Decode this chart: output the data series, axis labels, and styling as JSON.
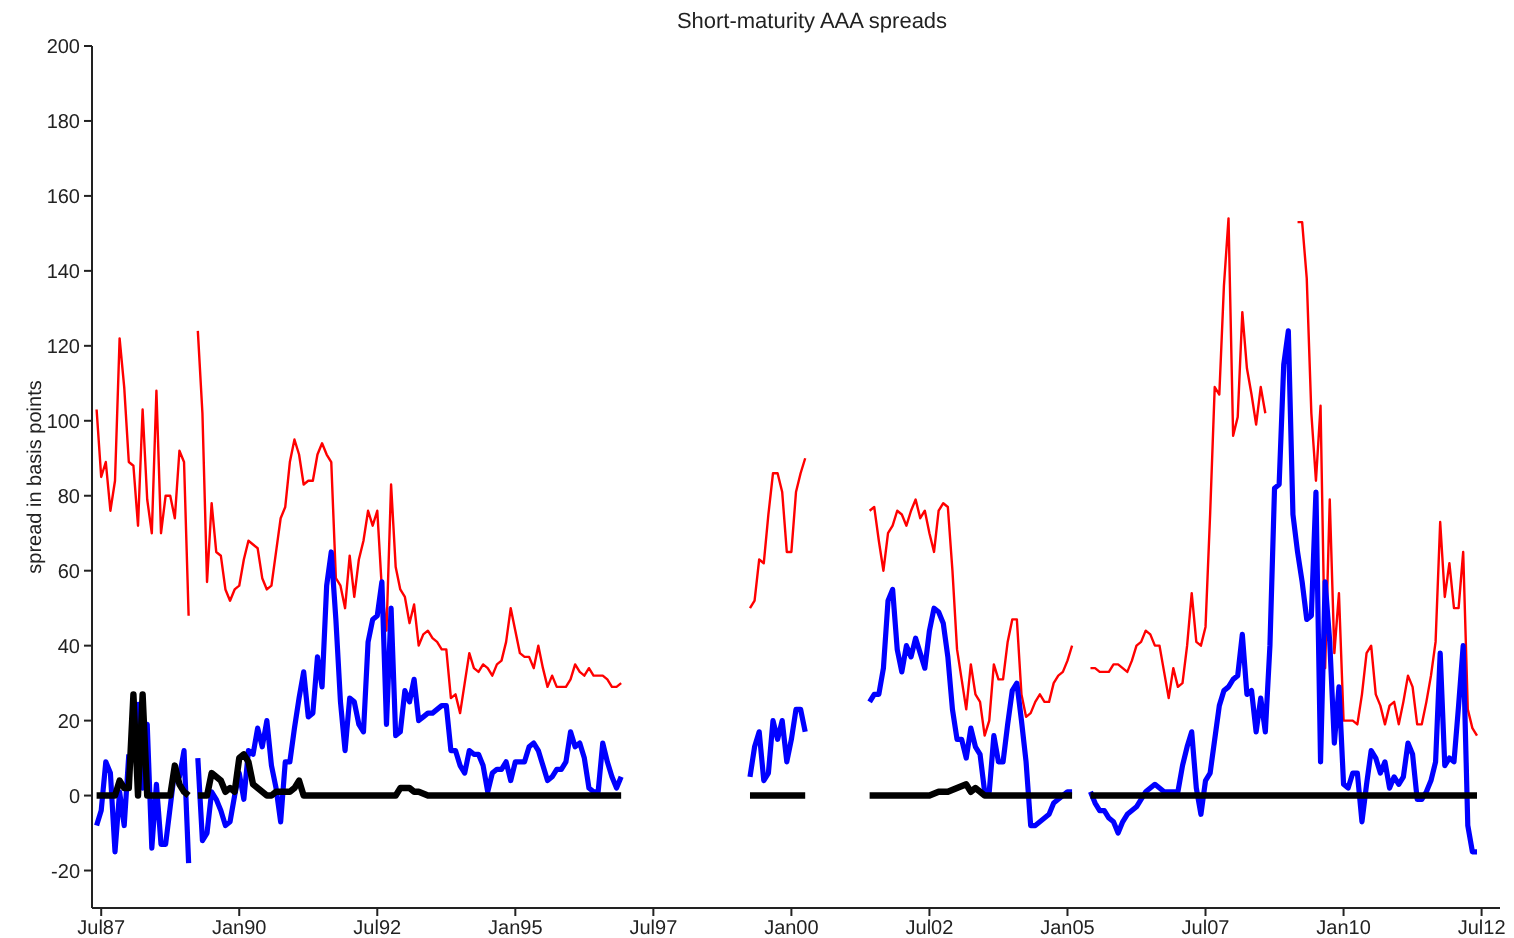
{
  "chart_data": {
    "type": "line",
    "title": "Short-maturity AAA spreads",
    "ylabel": "spread in basis points",
    "xlim": [
      "1987-05",
      "2012-11"
    ],
    "ylim": [
      -30,
      200
    ],
    "xticks": [
      {
        "value": "1987-07",
        "label": "Jul87"
      },
      {
        "value": "1990-01",
        "label": "Jan90"
      },
      {
        "value": "1992-07",
        "label": "Jul92"
      },
      {
        "value": "1995-01",
        "label": "Jan95"
      },
      {
        "value": "1997-07",
        "label": "Jul97"
      },
      {
        "value": "2000-01",
        "label": "Jan00"
      },
      {
        "value": "2002-07",
        "label": "Jul02"
      },
      {
        "value": "2005-01",
        "label": "Jan05"
      },
      {
        "value": "2007-07",
        "label": "Jul07"
      },
      {
        "value": "2010-01",
        "label": "Jan10"
      },
      {
        "value": "2012-07",
        "label": "Jul12"
      }
    ],
    "yticks": [
      -20,
      0,
      20,
      40,
      60,
      80,
      100,
      120,
      140,
      160,
      180,
      200
    ],
    "grid": false,
    "legend": false,
    "x": [
      "1987-06",
      "1987-07",
      "1987-08",
      "1987-09",
      "1987-10",
      "1987-11",
      "1987-12",
      "1988-01",
      "1988-02",
      "1988-03",
      "1988-04",
      "1988-05",
      "1988-06",
      "1988-07",
      "1988-08",
      "1988-09",
      "1988-10",
      "1988-11",
      "1988-12",
      "1989-01",
      "1989-02",
      "1989-03",
      "1989-04",
      "1989-05",
      "1989-06",
      "1989-07",
      "1989-08",
      "1989-09",
      "1989-10",
      "1989-11",
      "1989-12",
      "1990-01",
      "1990-02",
      "1990-03",
      "1990-04",
      "1990-05",
      "1990-06",
      "1990-07",
      "1990-08",
      "1990-09",
      "1990-10",
      "1990-11",
      "1990-12",
      "1991-01",
      "1991-02",
      "1991-03",
      "1991-04",
      "1991-05",
      "1991-06",
      "1991-07",
      "1991-08",
      "1991-09",
      "1991-10",
      "1991-11",
      "1991-12",
      "1992-01",
      "1992-02",
      "1992-03",
      "1992-04",
      "1992-05",
      "1992-06",
      "1992-07",
      "1992-08",
      "1992-09",
      "1992-10",
      "1992-11",
      "1992-12",
      "1993-01",
      "1993-02",
      "1993-03",
      "1993-04",
      "1993-05",
      "1993-06",
      "1993-07",
      "1993-08",
      "1993-09",
      "1993-10",
      "1993-11",
      "1993-12",
      "1994-01",
      "1994-02",
      "1994-03",
      "1994-04",
      "1994-05",
      "1994-06",
      "1994-07",
      "1994-08",
      "1994-09",
      "1994-10",
      "1994-11",
      "1994-12",
      "1995-01",
      "1995-02",
      "1995-03",
      "1995-04",
      "1995-05",
      "1995-06",
      "1995-07",
      "1995-08",
      "1995-09",
      "1995-10",
      "1995-11",
      "1995-12",
      "1996-01",
      "1996-02",
      "1996-03",
      "1996-04",
      "1996-05",
      "1996-06",
      "1996-07",
      "1996-08",
      "1996-09",
      "1996-10",
      "1996-11",
      "1996-12",
      "1997-01",
      "1999-04",
      "1999-05",
      "1999-06",
      "1999-07",
      "1999-08",
      "1999-09",
      "1999-10",
      "1999-11",
      "1999-12",
      "2000-01",
      "2000-02",
      "2000-03",
      "2000-04",
      "2000-05",
      "2001-06",
      "2001-07",
      "2001-08",
      "2001-09",
      "2001-10",
      "2001-11",
      "2001-12",
      "2002-01",
      "2002-02",
      "2002-03",
      "2002-04",
      "2002-05",
      "2002-06",
      "2002-07",
      "2002-08",
      "2002-09",
      "2002-10",
      "2002-11",
      "2002-12",
      "2003-01",
      "2003-02",
      "2003-03",
      "2003-04",
      "2003-05",
      "2003-06",
      "2003-07",
      "2003-08",
      "2003-09",
      "2003-10",
      "2003-11",
      "2003-12",
      "2004-01",
      "2004-02",
      "2004-03",
      "2004-04",
      "2004-05",
      "2004-06",
      "2004-07",
      "2004-08",
      "2004-09",
      "2004-10",
      "2004-11",
      "2004-12",
      "2005-01",
      "2005-02",
      "2005-03",
      "2005-06",
      "2005-07",
      "2005-08",
      "2005-09",
      "2005-10",
      "2005-11",
      "2005-12",
      "2006-01",
      "2006-02",
      "2006-03",
      "2006-04",
      "2006-05",
      "2006-06",
      "2006-07",
      "2006-08",
      "2006-09",
      "2006-10",
      "2006-11",
      "2006-12",
      "2007-01",
      "2007-02",
      "2007-03",
      "2007-04",
      "2007-05",
      "2007-06",
      "2007-07",
      "2007-08",
      "2007-09",
      "2007-10",
      "2007-11",
      "2007-12",
      "2008-01",
      "2008-02",
      "2008-03",
      "2008-04",
      "2008-05",
      "2008-06",
      "2008-07",
      "2008-08",
      "2008-09",
      "2008-10",
      "2008-11",
      "2008-12",
      "2009-01",
      "2009-02",
      "2009-03",
      "2009-04",
      "2009-05",
      "2009-06",
      "2009-07",
      "2009-08",
      "2009-09",
      "2009-10",
      "2009-11",
      "2009-12",
      "2010-01",
      "2010-02",
      "2010-03",
      "2010-04",
      "2010-05",
      "2010-06",
      "2010-07",
      "2010-08",
      "2010-09",
      "2010-10",
      "2010-11",
      "2010-12",
      "2011-01",
      "2011-02",
      "2011-03",
      "2011-04",
      "2011-05",
      "2011-06",
      "2011-07",
      "2011-08",
      "2011-09",
      "2011-10",
      "2011-11",
      "2011-12",
      "2012-01",
      "2012-02",
      "2012-03",
      "2012-04",
      "2012-05",
      "2012-06"
    ],
    "series": [
      {
        "color": "#ff0000",
        "values": [
          103,
          85,
          89,
          76,
          84,
          122,
          109,
          89,
          88,
          72,
          103,
          79,
          70,
          108,
          70,
          80,
          80,
          74,
          92,
          89,
          48,
          null,
          124,
          102,
          57,
          78,
          65,
          64,
          55,
          52,
          55,
          56,
          63,
          68,
          67,
          66,
          58,
          55,
          56,
          65,
          74,
          77,
          89,
          95,
          91,
          83,
          84,
          84,
          91,
          94,
          91,
          89,
          58,
          56,
          50,
          64,
          53,
          63,
          68,
          76,
          72,
          76,
          55,
          44,
          83,
          61,
          55,
          53,
          46,
          51,
          40,
          43,
          44,
          42,
          41,
          39,
          39,
          26,
          27,
          22,
          30,
          38,
          34,
          33,
          35,
          34,
          32,
          35,
          36,
          41,
          50,
          44,
          38,
          37,
          37,
          34,
          40,
          34,
          29,
          32,
          29,
          29,
          29,
          31,
          35,
          33,
          32,
          34,
          32,
          32,
          32,
          31,
          29,
          29,
          30,
          null,
          50,
          52,
          63,
          62,
          75,
          86,
          86,
          81,
          65,
          65,
          81,
          86,
          90,
          null,
          76,
          77,
          68,
          60,
          70,
          72,
          76,
          75,
          72,
          76,
          79,
          74,
          76,
          70,
          65,
          76,
          78,
          77,
          60,
          39,
          31,
          23,
          35,
          27,
          25,
          16,
          20,
          35,
          31,
          31,
          41,
          47,
          47,
          27,
          21,
          22,
          25,
          27,
          25,
          25,
          30,
          32,
          33,
          36,
          40,
          null,
          34,
          34,
          33,
          33,
          33,
          35,
          35,
          34,
          33,
          36,
          40,
          41,
          44,
          43,
          40,
          40,
          33,
          26,
          34,
          29,
          30,
          40,
          54,
          41,
          40,
          45,
          75,
          109,
          107,
          136,
          154,
          96,
          101,
          129,
          114,
          107,
          99,
          109,
          102,
          null,
          null,
          null,
          null,
          null,
          null,
          153,
          153,
          138,
          102,
          84,
          104,
          34,
          79,
          38,
          54,
          20,
          20,
          20,
          19,
          27,
          38,
          40,
          27,
          24,
          19,
          24,
          25,
          19,
          25,
          32,
          29,
          19,
          19,
          25,
          32,
          41,
          73,
          53,
          62,
          50,
          50,
          65,
          23,
          18,
          16
        ]
      },
      {
        "color": "#0000ff",
        "values": [
          -8,
          -4,
          9,
          6,
          -15,
          1,
          -8,
          11,
          null,
          25,
          2,
          19,
          -14,
          3,
          -13,
          -13,
          -3,
          7,
          5,
          12,
          -18,
          null,
          10,
          -12,
          -10,
          1,
          -1,
          -4,
          -8,
          -7,
          0,
          6,
          -1,
          12,
          11,
          18,
          13,
          20,
          8,
          2,
          -7,
          9,
          9,
          18,
          26,
          33,
          21,
          22,
          37,
          29,
          56,
          65,
          47,
          25,
          12,
          26,
          25,
          19,
          17,
          41,
          47,
          48,
          57,
          19,
          50,
          16,
          17,
          28,
          25,
          31,
          20,
          21,
          22,
          22,
          23,
          24,
          24,
          12,
          12,
          8,
          6,
          12,
          11,
          11,
          8,
          1,
          6,
          7,
          7,
          9,
          4,
          9,
          9,
          9,
          13,
          14,
          12,
          8,
          4,
          5,
          7,
          7,
          9,
          17,
          13,
          14,
          10,
          2,
          1,
          1,
          14,
          9,
          5,
          2,
          5,
          null,
          5,
          13,
          17,
          4,
          6,
          20,
          15,
          20,
          9,
          15,
          23,
          23,
          17,
          null,
          25,
          27,
          27,
          34,
          52,
          55,
          39,
          33,
          40,
          37,
          42,
          38,
          34,
          44,
          50,
          49,
          46,
          37,
          23,
          15,
          15,
          10,
          18,
          13,
          11,
          1,
          1,
          16,
          9,
          9,
          19,
          28,
          30,
          20,
          9,
          -8,
          -8,
          -7,
          -6,
          -5,
          -2,
          -1,
          0,
          1,
          1,
          null,
          1,
          -2,
          -4,
          -4,
          -6,
          -7,
          -10,
          -7,
          -5,
          -4,
          -3,
          -1,
          1,
          2,
          3,
          2,
          1,
          1,
          1,
          1,
          8,
          13,
          17,
          2,
          -5,
          4,
          6,
          15,
          24,
          28,
          29,
          31,
          32,
          43,
          27,
          28,
          17,
          26,
          17,
          40,
          82,
          83,
          115,
          124,
          75,
          65,
          57,
          47,
          48,
          81,
          9,
          57,
          41,
          14,
          29,
          3,
          2,
          6,
          6,
          -7,
          3,
          12,
          10,
          6,
          9,
          2,
          5,
          3,
          5,
          14,
          11,
          -1,
          -1,
          1,
          4,
          9,
          38,
          8,
          10,
          9,
          24,
          40,
          -8,
          -15,
          -15
        ]
      },
      {
        "color": "#000000",
        "x": [
          "1987-06",
          "1987-10",
          "1987-11",
          "1987-12",
          "1988-01",
          "1988-02",
          "1988-03",
          "1988-04",
          "1988-05",
          "1988-10",
          "1988-11",
          "1988-12",
          "1989-01",
          "1989-02",
          "1989-03",
          "1989-04",
          "1989-06",
          "1989-07",
          "1989-08",
          "1989-09",
          "1989-10",
          "1989-11",
          "1989-12",
          "1990-01",
          "1990-02",
          "1990-03",
          "1990-04",
          "1990-05",
          "1990-06",
          "1990-07",
          "1990-08",
          "1990-09",
          "1990-12",
          "1991-01",
          "1991-02",
          "1991-03",
          "1992-11",
          "1992-12",
          "1993-02",
          "1993-03",
          "1993-04",
          "1993-06",
          "1996-12",
          "1997-01",
          "1999-04",
          "2000-04",
          "2000-05",
          "2001-06",
          "2002-07",
          "2002-09",
          "2002-11",
          "2003-01",
          "2003-03",
          "2003-04",
          "2003-05",
          "2003-07",
          "2005-02",
          "2005-03",
          "2005-06",
          "2012-06"
        ],
        "values": [
          0,
          0,
          4,
          2,
          2,
          27,
          0,
          27,
          0,
          0,
          8,
          3,
          1,
          0,
          null,
          0,
          0,
          6,
          5,
          4,
          1,
          2,
          1,
          10,
          11,
          9,
          3,
          2,
          1,
          0,
          0,
          1,
          1,
          2,
          4,
          0,
          0,
          2,
          2,
          1,
          1,
          0,
          0,
          null,
          0,
          0,
          null,
          0,
          0,
          1,
          1,
          2,
          3,
          1,
          2,
          0,
          0,
          null,
          0,
          0
        ]
      }
    ]
  }
}
